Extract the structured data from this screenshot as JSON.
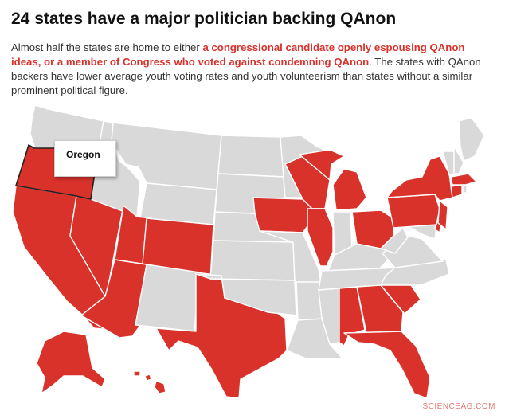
{
  "title": "24 states have a major politician backing QAnon",
  "subtitle": {
    "part1": "Almost half the states are home to either ",
    "highlight": "a congressional candidate openly espousing QAnon ideas, or a member of Congress who voted against condemning QAnon",
    "part2": ". The states with QAnon backers have lower average youth voting rates and youth volunteerism than states without a similar prominent political figure."
  },
  "tooltip": {
    "state": "Oregon"
  },
  "watermark": "SCIENCEAG.COM",
  "colors": {
    "qanon_state": "#d9322b",
    "other_state": "#d9d9d9",
    "border": "#ffffff",
    "highlight_outline": "#222222"
  },
  "highlighted_states": [
    "Oregon",
    "California",
    "Nevada",
    "Utah",
    "Arizona",
    "Colorado",
    "Texas",
    "Alaska",
    "Hawaii",
    "Iowa",
    "Illinois",
    "Wisconsin",
    "Michigan",
    "Ohio",
    "Pennsylvania",
    "New York",
    "New Jersey",
    "Delaware",
    "Massachusetts",
    "Connecticut",
    "Alabama",
    "Georgia",
    "South Carolina",
    "Florida"
  ]
}
